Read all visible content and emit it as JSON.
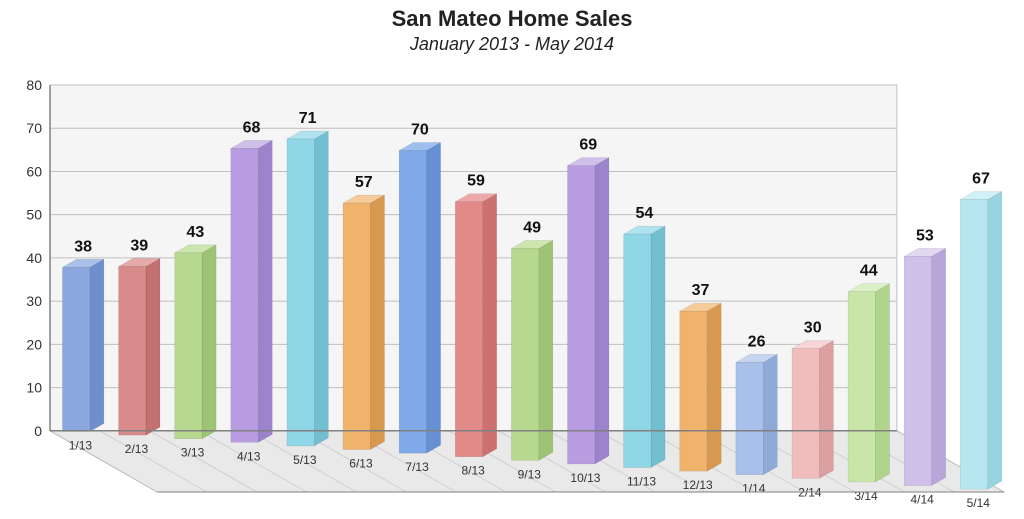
{
  "chart": {
    "type": "bar-3d",
    "title": "San Mateo Home Sales",
    "subtitle": "January 2013 - May 2014",
    "title_fontsize": 22,
    "subtitle_fontsize": 18,
    "categories": [
      "1/13",
      "2/13",
      "3/13",
      "4/13",
      "5/13",
      "6/13",
      "7/13",
      "8/13",
      "9/13",
      "10/13",
      "11/13",
      "12/13",
      "1/14",
      "2/14",
      "3/14",
      "4/14",
      "5/14"
    ],
    "values": [
      38,
      39,
      43,
      68,
      71,
      57,
      70,
      59,
      49,
      69,
      54,
      37,
      26,
      30,
      44,
      53,
      67
    ],
    "ylim": [
      0,
      80
    ],
    "ytick_step": 10,
    "axis_fontsize": 14,
    "cat_fontsize": 12,
    "value_fontsize": 16,
    "background_color": "#ffffff",
    "floor_color": "#e9e9e9",
    "wall_color": "#f5f5f5",
    "grid_color": "#bfbfbf",
    "axis_line_color": "#808080",
    "bar_colors_front": [
      "#8aa7e0",
      "#d98a8a",
      "#b7d98f",
      "#b79de0",
      "#8fd6e6",
      "#f0b36b",
      "#7fa9e8",
      "#e28a8a",
      "#b7d98f",
      "#b79de0",
      "#8fd6e6",
      "#f0b36b",
      "#a9c0ea",
      "#f0bcbc",
      "#c9e6a8",
      "#cfc0ea",
      "#b6e7f0"
    ],
    "bar_colors_top": [
      "#a9c0ea",
      "#e6a9a9",
      "#cde6ad",
      "#cfc0ea",
      "#b0e3ef",
      "#f5cc99",
      "#9fc0ef",
      "#eda9a9",
      "#cde6ad",
      "#cfc0ea",
      "#b0e3ef",
      "#f5cc99",
      "#c4d4f1",
      "#f6d4d4",
      "#dbf0c4",
      "#e1d8f2",
      "#d2f1f7"
    ],
    "bar_colors_side": [
      "#6f8ecc",
      "#c27070",
      "#9cc474",
      "#9d82cc",
      "#72bfd1",
      "#d99850",
      "#6690d4",
      "#cc7070",
      "#9cc474",
      "#9d82cc",
      "#72bfd1",
      "#d99850",
      "#8fa9d9",
      "#dca0a0",
      "#b0d48c",
      "#b8a6d9",
      "#97d4e0"
    ],
    "bar_width": 0.55,
    "depth_dx": 14,
    "depth_dy": 8
  }
}
